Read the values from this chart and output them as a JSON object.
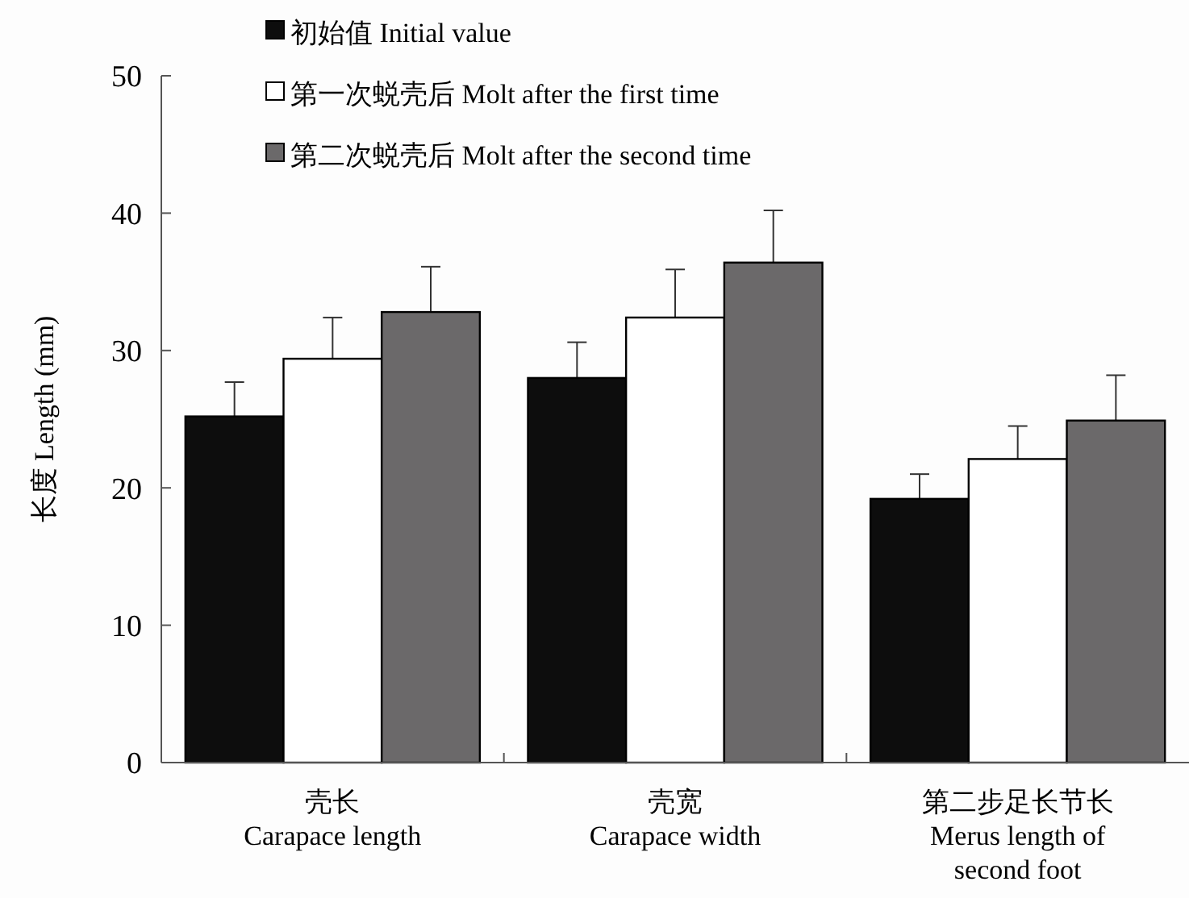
{
  "chart_data": {
    "type": "bar",
    "ylabel": "长度 Length (mm)",
    "categories": [
      "壳长\nCarapace length",
      "壳宽\nCarapace width",
      "第二步足长节长\nMerus length of\nsecond foot"
    ],
    "series": [
      {
        "name": "初始值 Initial value",
        "color": "#0d0d0d",
        "values": [
          25.2,
          28.0,
          19.2
        ],
        "errors": [
          [
            25.2,
            27.7
          ],
          [
            28.0,
            30.6
          ],
          [
            19.2,
            21.0
          ]
        ]
      },
      {
        "name": "第一次蜕壳后 Molt after the first time",
        "color": "#ffffff",
        "values": [
          29.4,
          32.4,
          22.1
        ],
        "errors": [
          [
            29.4,
            32.4
          ],
          [
            32.4,
            35.9
          ],
          [
            22.1,
            24.5
          ]
        ]
      },
      {
        "name": "第二次蜕壳后 Molt after the second time",
        "color": "#6b696a",
        "values": [
          32.8,
          36.4,
          24.9
        ],
        "errors": [
          [
            32.8,
            36.1
          ],
          [
            36.4,
            40.2
          ],
          [
            24.9,
            28.2
          ]
        ]
      }
    ],
    "ylim": [
      0,
      50
    ],
    "yticks": [
      0,
      10,
      20,
      30,
      40,
      50
    ],
    "legend": "top left",
    "grid": false
  }
}
